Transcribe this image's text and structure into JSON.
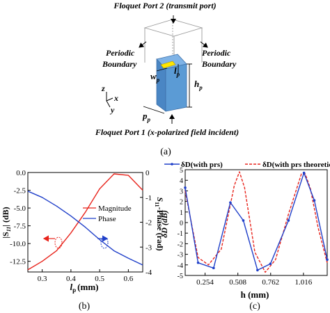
{
  "figure": {
    "port2_label": "Floquet Port 2 (transmit port)",
    "port1_label": "Floquet Port 1 (x-polarized field incident)",
    "periodic_left_1": "Periodic",
    "periodic_left_2": "Boundary",
    "periodic_right_1": "Periodic",
    "periodic_right_2": "Boundary",
    "label_wp_base": "w",
    "label_wp_sub": "p",
    "label_lp_base": "l",
    "label_lp_sub": "p",
    "label_hp_base": "h",
    "label_hp_sub": "p",
    "label_pp_base": "p",
    "label_pp_sub": "p",
    "axis_z": "z",
    "axis_x": "x",
    "axis_y": "y",
    "caption_a": "(a)",
    "caption_b": "(b)",
    "caption_c": "(c)",
    "colors": {
      "substrate": "#5b9bd5",
      "patch": "#ffe600",
      "red": "#e8231b",
      "blue": "#1f3fc9"
    }
  },
  "chart_data": [
    {
      "type": "line",
      "xlabel_base": "l",
      "xlabel_sub": "p",
      "xlabel_unit": "(mm)",
      "ylabel_left": "|S11| (dB)",
      "ylabel_left_parts": {
        "pre": "|S",
        "sub": "11",
        "post": "| (dB)"
      },
      "ylabel_right": "S11-Phase (rad)",
      "ylabel_right_parts": {
        "pre": "S",
        "sub": "11",
        "post": "-Phase (rad)"
      },
      "xlim": [
        0.25,
        0.65
      ],
      "ylim_left": [
        -14,
        0
      ],
      "ylim_right": [
        -4,
        0
      ],
      "x_ticks": [
        "0.3",
        "0.4",
        "0.5",
        "0.6"
      ],
      "y_ticks_left": [
        "0.0",
        "-2.5",
        "-5.0",
        "-7.5",
        "-10.0",
        "-12.5"
      ],
      "y_ticks_right": [
        "0",
        "-1",
        "-2",
        "-3",
        "-4"
      ],
      "series": [
        {
          "name": "Magnitude",
          "axis": "left",
          "x": [
            0.25,
            0.3,
            0.35,
            0.4,
            0.45,
            0.5,
            0.55,
            0.6,
            0.65
          ],
          "y": [
            -13.7,
            -12.5,
            -11.0,
            -8.5,
            -5.6,
            -2.3,
            -0.2,
            -0.4,
            -2.5
          ]
        },
        {
          "name": "Phase",
          "axis": "right",
          "x": [
            0.25,
            0.3,
            0.35,
            0.4,
            0.45,
            0.5,
            0.55,
            0.6,
            0.65
          ],
          "y": [
            -0.75,
            -1.0,
            -1.35,
            -1.75,
            -2.2,
            -2.7,
            -3.15,
            -3.45,
            -3.72
          ]
        }
      ],
      "legend": [
        "Magnitude",
        "Phase"
      ],
      "legend_position": "center-right"
    },
    {
      "type": "line",
      "xlabel": "h (mm)",
      "ylabel": "δD (dB)",
      "xlim": [
        0.1,
        1.2
      ],
      "ylim": [
        -5,
        5
      ],
      "x_ticks": [
        "0.254",
        "0.508",
        "0.762",
        "1.016"
      ],
      "y_ticks": [
        "5",
        "4",
        "3",
        "2",
        "1",
        "0",
        "-1",
        "-2",
        "-3",
        "-4",
        "-5"
      ],
      "series": [
        {
          "name": "δD(with prs)",
          "x": [
            0.1,
            0.2,
            0.32,
            0.45,
            0.55,
            0.66,
            0.76,
            0.9,
            1.02,
            1.1,
            1.2
          ],
          "y": [
            3.3,
            -3.8,
            -4.3,
            1.9,
            0.2,
            -4.5,
            -3.9,
            0.2,
            4.7,
            2.1,
            -3.5
          ]
        },
        {
          "name": "δD(with prs theoretical)",
          "x": [
            0.1,
            0.2,
            0.28,
            0.38,
            0.48,
            0.52,
            0.56,
            0.64,
            0.72,
            0.8,
            0.9,
            1.0,
            1.03,
            1.07,
            1.13,
            1.2
          ],
          "y": [
            3.0,
            -3.3,
            -4.0,
            -2.5,
            3.5,
            4.8,
            3.3,
            -2.8,
            -4.7,
            -3.5,
            0.8,
            4.6,
            4.6,
            3.2,
            -0.5,
            -3.8
          ]
        }
      ],
      "legend": [
        "δD(with prs)",
        "δD(with prs theoretical)"
      ],
      "legend_position": "top"
    }
  ]
}
